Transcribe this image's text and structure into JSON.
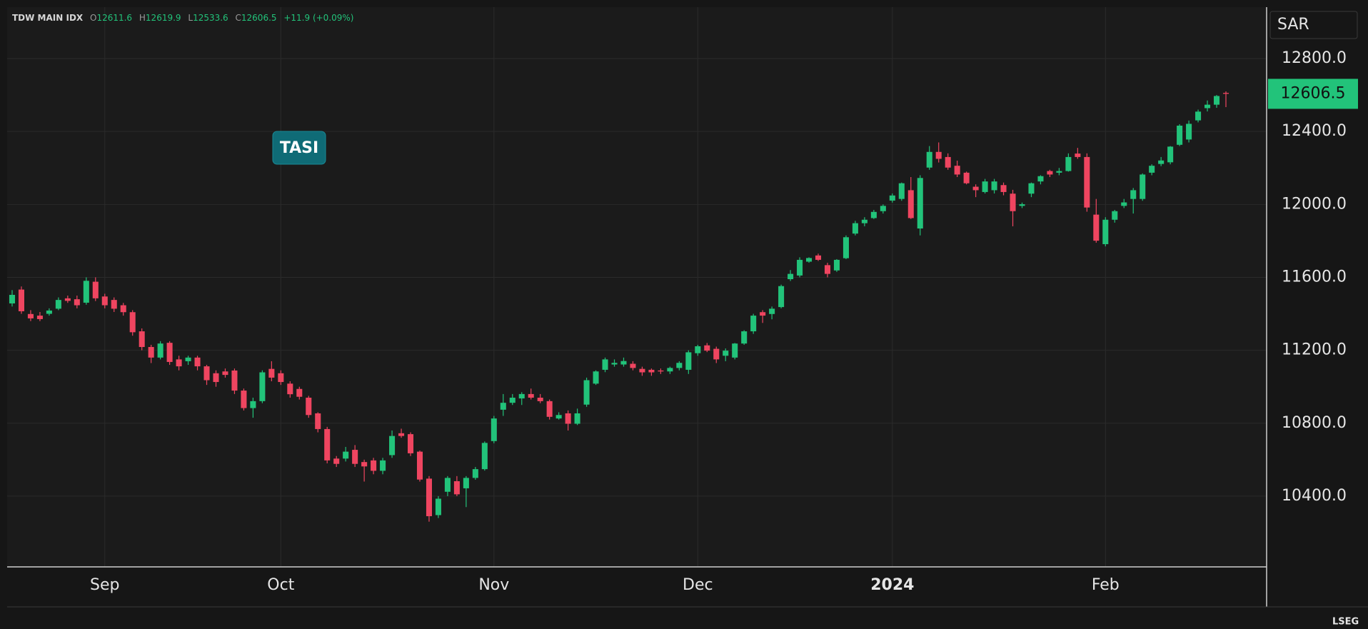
{
  "chart_data": {
    "type": "candlestick",
    "title": "TDW MAIN IDX",
    "ohlc_labels": [
      "O",
      "H",
      "L",
      "C"
    ],
    "change": "+11.9 (+0.09%)",
    "currency": "SAR",
    "annotation": "TASI",
    "source": "LSEG",
    "up_color": "#22c37a",
    "down_color": "#ef4560",
    "grid": true,
    "categories": [
      null,
      null,
      null,
      null,
      null,
      null,
      null,
      null,
      null,
      null,
      null,
      null,
      null,
      null,
      null,
      null,
      null,
      null,
      null,
      null,
      null,
      null,
      null,
      null,
      null,
      null,
      null,
      null,
      null,
      null,
      null,
      null,
      null,
      null,
      null,
      null,
      null,
      null,
      null,
      null,
      null,
      null,
      null,
      null,
      null,
      null,
      null,
      null,
      null,
      null,
      null,
      null,
      null,
      null,
      null,
      null,
      null,
      null,
      null,
      null,
      null,
      null,
      null,
      null,
      null,
      null,
      null,
      null,
      null,
      null,
      null,
      null,
      null,
      null,
      null,
      null,
      null,
      null,
      null,
      null,
      null,
      null,
      null,
      null,
      null,
      null,
      null,
      null,
      null,
      null,
      null,
      null,
      null,
      null,
      null,
      null,
      null,
      null,
      null,
      null,
      null,
      null,
      null,
      null,
      null,
      null,
      null,
      null,
      null,
      null,
      null,
      null,
      null,
      null,
      null,
      null,
      null,
      null,
      null,
      null,
      null,
      null,
      null,
      null,
      null,
      null,
      null,
      null,
      null,
      null,
      null,
      null
    ],
    "open": [
      11457,
      11533,
      11399,
      11390,
      11400,
      11428,
      11485,
      11480,
      11461,
      11576,
      11495,
      11476,
      11447,
      11409,
      11304,
      11218,
      11160,
      11241,
      11150,
      11140,
      11160,
      11112,
      11074,
      11084,
      11089,
      10979,
      10883,
      10921,
      11098,
      11074,
      11017,
      10988,
      10940,
      10854,
      10768,
      10606,
      10606,
      10654,
      10587,
      10596,
      10539,
      10625,
      10745,
      10740,
      10644,
      10496,
      10296,
      10424,
      10482,
      10443,
      10500,
      10548,
      10702,
      10874,
      10912,
      10936,
      10960,
      10940,
      10921,
      10826,
      10854,
      10797,
      10902,
      11017,
      11093,
      11122,
      11122,
      11126,
      11098,
      11093,
      11089,
      11084,
      11103,
      11093,
      11184,
      11227,
      11208,
      11170,
      11160,
      11237,
      11304,
      11409,
      11399,
      11437,
      11590,
      11610,
      11686,
      11720,
      11667,
      11638,
      11705,
      11840,
      11897,
      11925,
      11963,
      12021,
      12030,
      12078,
      11868,
      12202,
      12288,
      12260,
      12212,
      12174,
      12097,
      12068,
      12078,
      12106,
      12059,
      11992,
      12059,
      12126,
      12183,
      12174,
      12183,
      12279,
      12260,
      11944,
      11782,
      11916,
      11992,
      12030,
      12030,
      12174,
      12222,
      12231,
      12327,
      12356,
      12461,
      12528,
      12547,
      12611.6
    ],
    "high": [
      11530,
      11550,
      11420,
      11410,
      11430,
      11490,
      11500,
      11500,
      11600,
      11600,
      11510,
      11490,
      11460,
      11420,
      11320,
      11230,
      11250,
      11250,
      11170,
      11170,
      11170,
      11120,
      11090,
      11100,
      11100,
      10990,
      10940,
      11090,
      11140,
      11090,
      11030,
      11000,
      10950,
      10860,
      10780,
      10620,
      10670,
      10680,
      10600,
      10610,
      10610,
      10760,
      10770,
      10750,
      10650,
      10510,
      10400,
      10510,
      10510,
      10510,
      10560,
      10700,
      10840,
      10960,
      10960,
      10970,
      10990,
      10960,
      10930,
      10860,
      10870,
      10880,
      11050,
      11090,
      11160,
      11150,
      11160,
      11140,
      11110,
      11100,
      11100,
      11110,
      11140,
      11200,
      11230,
      11240,
      11220,
      11210,
      11240,
      11310,
      11400,
      11420,
      11440,
      11560,
      11640,
      11710,
      11710,
      11730,
      11680,
      11700,
      11830,
      11910,
      11930,
      11970,
      12000,
      12060,
      12120,
      12150,
      12160,
      12320,
      12340,
      12280,
      12240,
      12180,
      12110,
      12140,
      12140,
      12120,
      12080,
      12010,
      12120,
      12160,
      12190,
      12200,
      12280,
      12310,
      12280,
      12030,
      11930,
      11970,
      12030,
      12090,
      12170,
      12220,
      12260,
      12320,
      12440,
      12460,
      12520,
      12570,
      12600,
      12619.9
    ],
    "low": [
      11440,
      11400,
      11360,
      11360,
      11390,
      11420,
      11460,
      11430,
      11450,
      11470,
      11430,
      11410,
      11390,
      11280,
      11200,
      11130,
      11150,
      11120,
      11090,
      11120,
      11090,
      11010,
      11000,
      11050,
      10960,
      10870,
      10830,
      10910,
      11030,
      11010,
      10940,
      10930,
      10830,
      10750,
      10580,
      10560,
      10590,
      10560,
      10480,
      10520,
      10520,
      10610,
      10720,
      10620,
      10480,
      10260,
      10280,
      10400,
      10400,
      10340,
      10490,
      10540,
      10690,
      10840,
      10900,
      10900,
      10930,
      10910,
      10820,
      10820,
      10760,
      10790,
      10890,
      11010,
      11080,
      11110,
      11110,
      11090,
      11060,
      11060,
      11070,
      11070,
      11090,
      11070,
      11170,
      11190,
      11130,
      11140,
      11150,
      11230,
      11290,
      11350,
      11370,
      11430,
      11580,
      11600,
      11680,
      11690,
      11600,
      11630,
      11700,
      11830,
      11880,
      11920,
      11950,
      12010,
      12020,
      11920,
      11830,
      12190,
      12230,
      12190,
      12150,
      12110,
      12040,
      12060,
      12060,
      12050,
      11880,
      11980,
      12040,
      12110,
      12150,
      12160,
      12180,
      12250,
      11960,
      11790,
      11770,
      11900,
      11980,
      11950,
      12020,
      12160,
      12210,
      12220,
      12320,
      12340,
      12450,
      12510,
      12530,
      12533.6
    ],
    "close": [
      11504,
      11414,
      11375,
      11371,
      11418,
      11476,
      11471,
      11447,
      11581,
      11485,
      11447,
      11428,
      11409,
      11299,
      11218,
      11160,
      11237,
      11136,
      11112,
      11160,
      11112,
      11036,
      11026,
      11065,
      10979,
      10883,
      10921,
      11079,
      11050,
      11026,
      10959,
      10945,
      10845,
      10768,
      10596,
      10577,
      10644,
      10577,
      10563,
      10539,
      10596,
      10730,
      10730,
      10635,
      10491,
      10290,
      10386,
      10500,
      10410,
      10500,
      10548,
      10692,
      10826,
      10912,
      10940,
      10960,
      10940,
      10921,
      10835,
      10845,
      10797,
      10854,
      11036,
      11084,
      11150,
      11131,
      11141,
      11103,
      11079,
      11079,
      11084,
      11103,
      11131,
      11189,
      11222,
      11198,
      11150,
      11198,
      11237,
      11304,
      11390,
      11390,
      11428,
      11552,
      11619,
      11696,
      11706,
      11696,
      11619,
      11696,
      11820,
      11897,
      11916,
      11959,
      11992,
      12049,
      12116,
      11925,
      12145,
      12288,
      12250,
      12202,
      12164,
      12116,
      12078,
      12126,
      12126,
      12068,
      11963,
      12001,
      12116,
      12155,
      12164,
      12183,
      12260,
      12260,
      11983,
      11801,
      11916,
      11963,
      12011,
      12078,
      12164,
      12212,
      12241,
      12317,
      12432,
      12442,
      12509,
      12547,
      12594.6,
      12606.5
    ],
    "xticks": [
      {
        "value": 10,
        "label": "Sep"
      },
      {
        "value": 29,
        "label": "Oct"
      },
      {
        "value": 52,
        "label": "Nov"
      },
      {
        "value": 74,
        "label": "Dec"
      },
      {
        "value": 95,
        "label": "2024"
      },
      {
        "value": 118,
        "label": "Feb"
      }
    ],
    "ylim": [
      10012,
      13082
    ],
    "yticks": [
      {
        "value": 10400,
        "label": "10400.0"
      },
      {
        "value": 10800,
        "label": "10800.0"
      },
      {
        "value": 11200,
        "label": "11200.0"
      },
      {
        "value": 11600,
        "label": "11600.0"
      },
      {
        "value": 12000,
        "label": "12000.0"
      },
      {
        "value": 12400,
        "label": "12400.0"
      },
      {
        "value": 12800,
        "label": "12800.0"
      }
    ]
  }
}
